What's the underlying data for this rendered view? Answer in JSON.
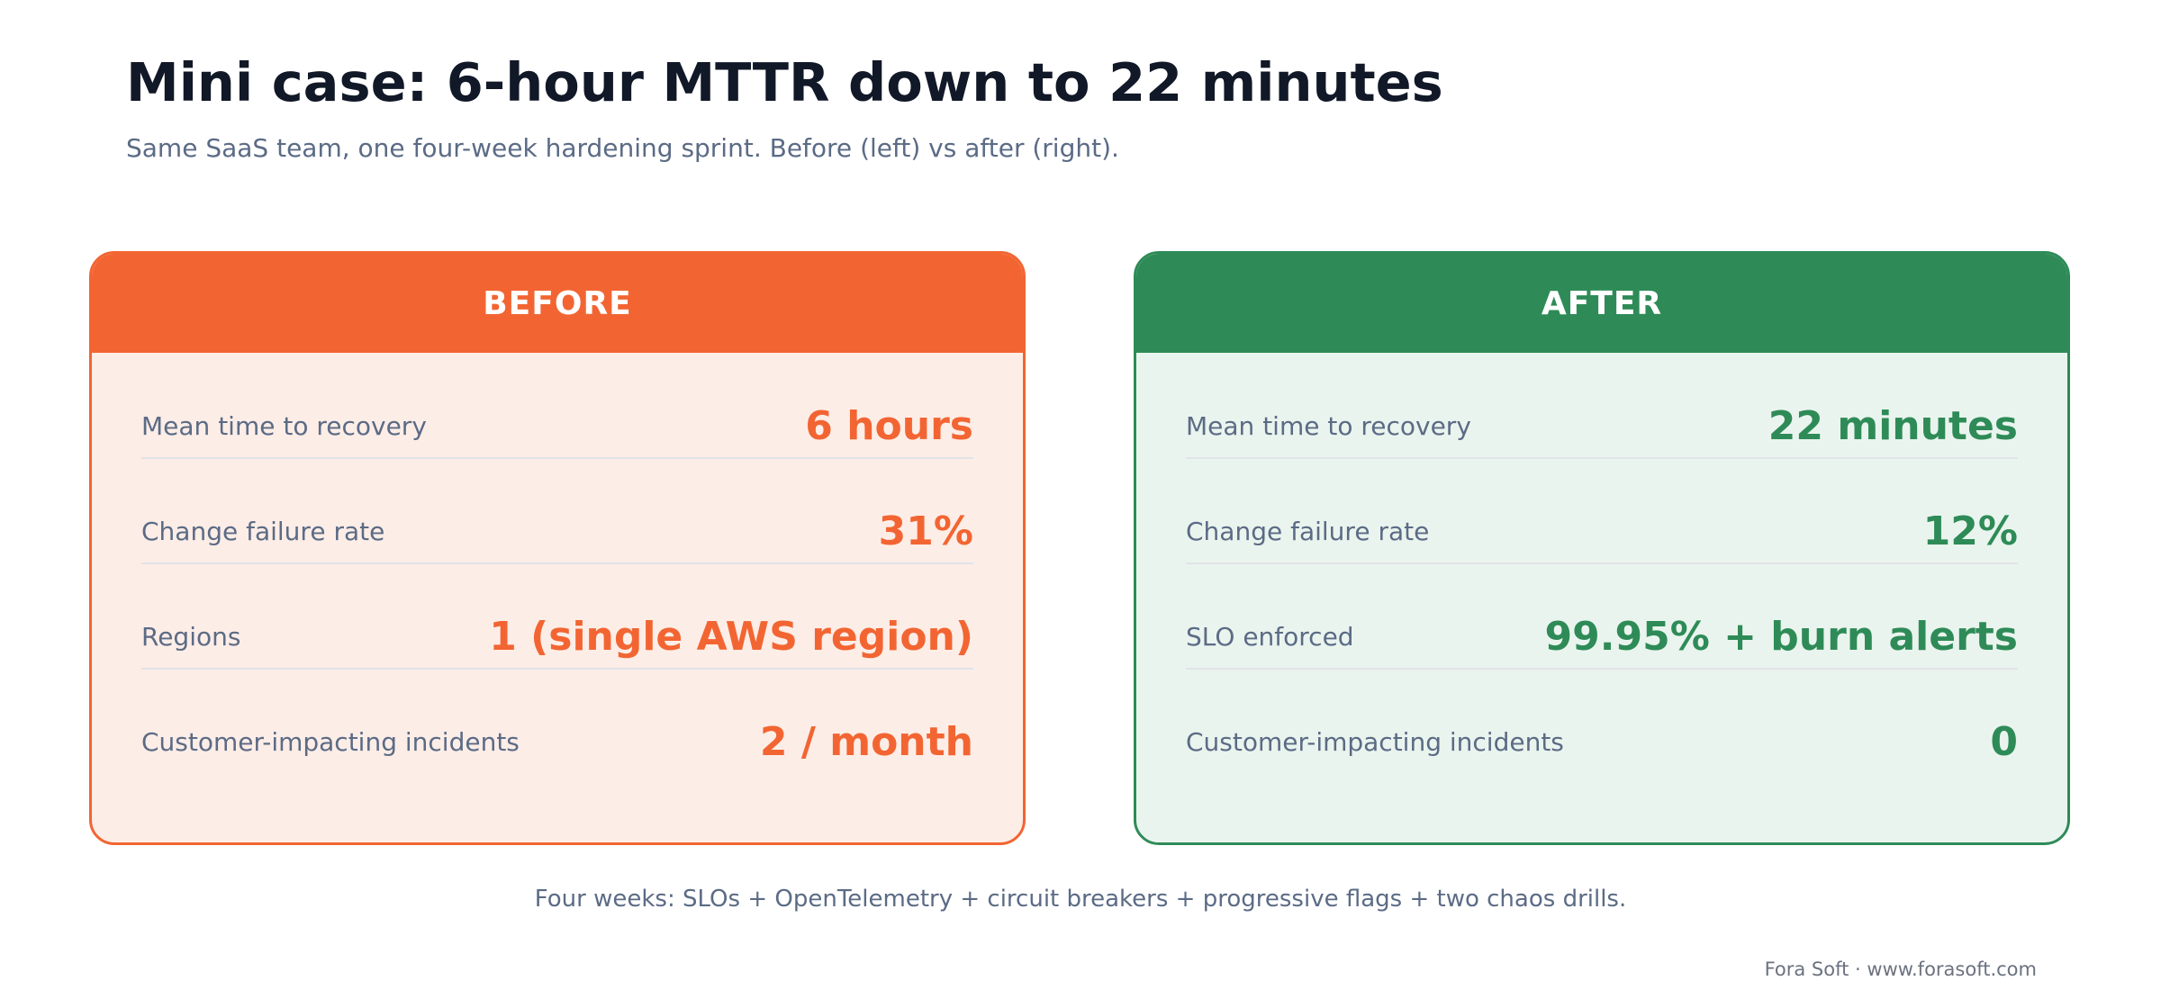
{
  "header": {
    "title": "Mini case: 6-hour MTTR down to 22 minutes",
    "subtitle": "Same SaaS team, one four-week hardening sprint. Before (left) vs after (right)."
  },
  "before": {
    "heading": "BEFORE",
    "accent_color": "#f26532",
    "rows": [
      {
        "label": "Mean time to recovery",
        "value": "6 hours"
      },
      {
        "label": "Change failure rate",
        "value": "31%"
      },
      {
        "label": "Regions",
        "value": "1 (single AWS region)"
      },
      {
        "label": "Customer-impacting incidents",
        "value": "2 / month"
      }
    ]
  },
  "after": {
    "heading": "AFTER",
    "accent_color": "#2e8b57",
    "rows": [
      {
        "label": "Mean time to recovery",
        "value": "22 minutes"
      },
      {
        "label": "Change failure rate",
        "value": "12%"
      },
      {
        "label": "SLO enforced",
        "value": "99.95% + burn alerts"
      },
      {
        "label": "Customer-impacting incidents",
        "value": "0"
      }
    ]
  },
  "footnote": "Four weeks: SLOs + OpenTelemetry + circuit breakers + progressive flags + two chaos drills.",
  "credit": "Fora Soft · www.forasoft.com"
}
